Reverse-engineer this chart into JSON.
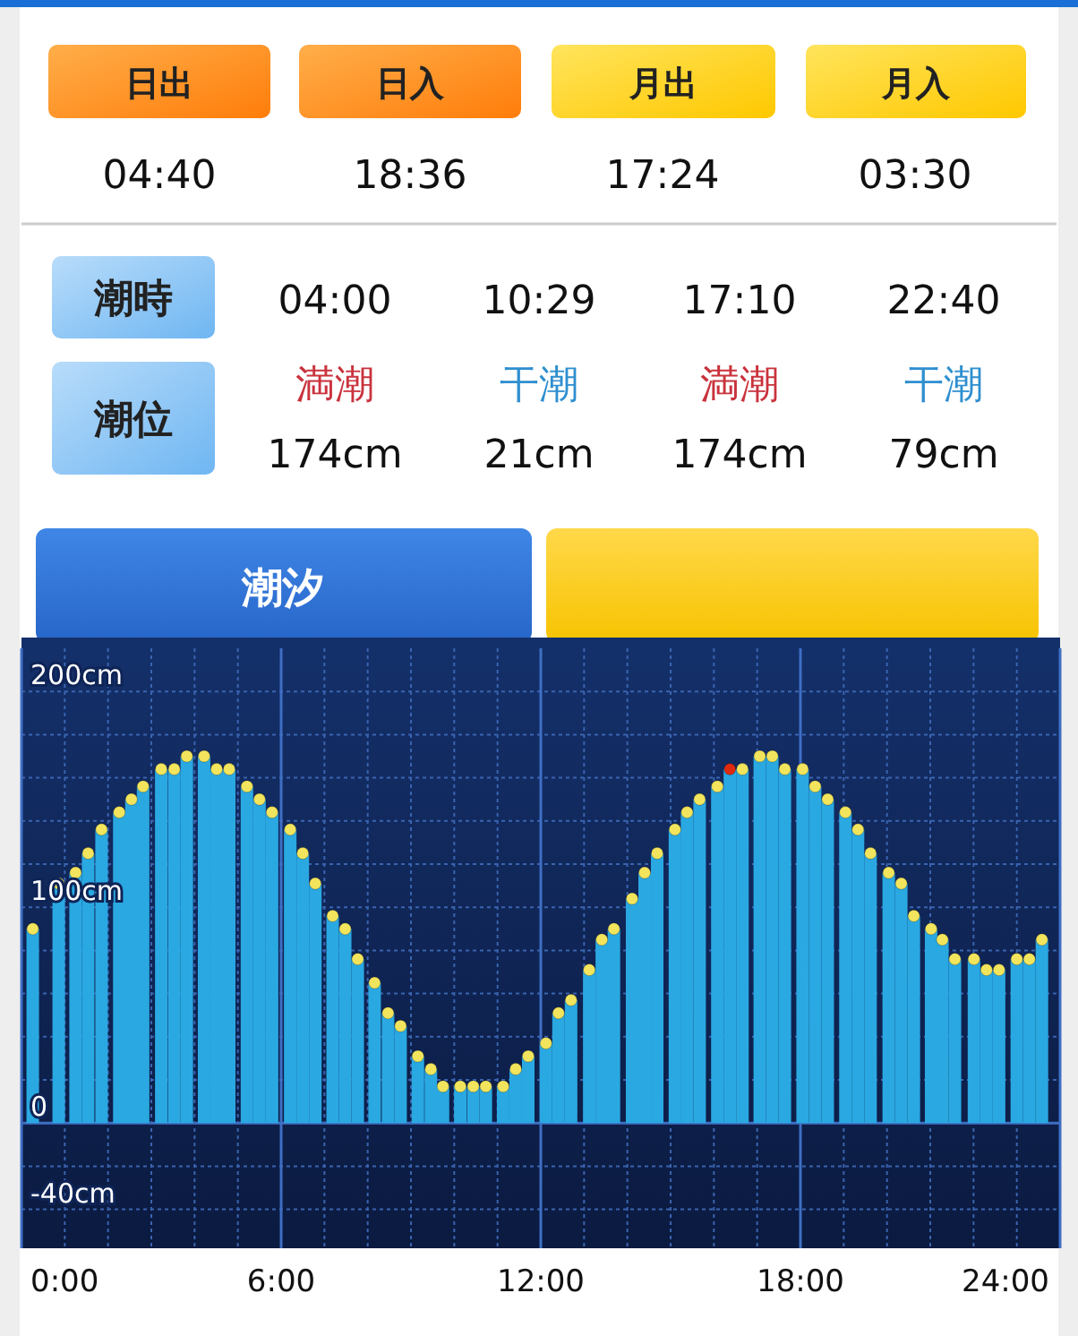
{
  "chart_data": [
    {
      "type": "other",
      "annotations": [
        "日出",
        "日入",
        "月出",
        "月入",
        "04:40",
        "18:36",
        "17:24",
        "03:30",
        "潮時",
        "潮位",
        "04:00",
        "10:29",
        "17:10",
        "22:40",
        "満潮",
        "干潮",
        "満潮",
        "干潮",
        "174cm",
        "21cm",
        "174cm",
        "79cm"
      ]
    },
    {
      "type": "area",
      "title": "潮汐",
      "series": [
        {
          "type": "bar",
          "color": "#2aa8e2",
          "x": [
            0.26,
            0.86,
            1.25,
            1.54,
            1.85,
            2.26,
            2.54,
            2.81,
            3.23,
            3.53,
            3.82,
            4.22,
            4.51,
            4.8,
            5.21,
            5.5,
            5.79,
            6.21,
            6.5,
            6.79,
            7.19,
            7.48,
            7.77,
            8.16,
            8.47,
            8.76,
            9.16,
            9.46,
            9.74,
            10.14,
            10.44,
            10.73,
            11.13,
            11.42,
            11.71,
            12.12,
            12.41,
            12.7,
            13.12,
            13.41,
            13.69,
            14.11,
            14.4,
            14.69,
            15.1,
            15.38,
            15.67,
            16.08,
            16.37,
            16.66,
            17.06,
            17.35,
            17.64,
            18.05,
            18.34,
            18.63,
            19.04,
            19.33,
            19.62,
            20.04,
            20.33,
            20.62,
            21.02,
            21.28,
            21.57,
            22.01,
            22.3,
            22.59,
            23.0,
            23.29,
            23.58
          ],
          "values": [
            90,
            111,
            116,
            125,
            136,
            144,
            150,
            156,
            164,
            164,
            170,
            170,
            164,
            164,
            156,
            150,
            144,
            136,
            125,
            111,
            96,
            90,
            76,
            65,
            51,
            45,
            31,
            25,
            17,
            17,
            17,
            17,
            17,
            25,
            31,
            37,
            51,
            57,
            71,
            85,
            90,
            104,
            116,
            125,
            136,
            144,
            150,
            156,
            164,
            164,
            170,
            170,
            164,
            164,
            156,
            150,
            144,
            136,
            125,
            116,
            111,
            96,
            90,
            85,
            76,
            76,
            71,
            71,
            76,
            76,
            85
          ]
        },
        {
          "type": "scatter",
          "color": "#f2e45c",
          "x": [
            0.26,
            0.86,
            1.25,
            1.54,
            1.85,
            2.26,
            2.54,
            2.81,
            3.23,
            3.53,
            3.82,
            4.22,
            4.51,
            4.8,
            5.21,
            5.5,
            5.79,
            6.21,
            6.5,
            6.79,
            7.19,
            7.48,
            7.77,
            8.16,
            8.47,
            8.76,
            9.16,
            9.46,
            9.74,
            10.14,
            10.44,
            10.73,
            11.13,
            11.42,
            11.71,
            12.12,
            12.41,
            12.7,
            13.12,
            13.41,
            13.69,
            14.11,
            14.4,
            14.69,
            15.1,
            15.38,
            15.67,
            16.08,
            16.66,
            17.06,
            17.35,
            17.64,
            18.05,
            18.34,
            18.63,
            19.04,
            19.33,
            19.62,
            20.04,
            20.33,
            20.62,
            21.02,
            21.28,
            21.57,
            22.01,
            22.3,
            22.59,
            23.0,
            23.29,
            23.58
          ],
          "values": [
            90,
            111,
            116,
            125,
            136,
            144,
            150,
            156,
            164,
            164,
            170,
            170,
            164,
            164,
            156,
            150,
            144,
            136,
            125,
            111,
            96,
            90,
            76,
            65,
            51,
            45,
            31,
            25,
            17,
            17,
            17,
            17,
            17,
            25,
            31,
            37,
            51,
            57,
            71,
            85,
            90,
            104,
            116,
            125,
            136,
            144,
            150,
            156,
            164,
            170,
            170,
            164,
            164,
            156,
            150,
            144,
            136,
            125,
            116,
            111,
            96,
            90,
            85,
            76,
            76,
            71,
            71,
            76,
            76,
            85
          ]
        },
        {
          "type": "scatter",
          "color": "#e02a10",
          "x": [
            16.37
          ],
          "values": [
            164
          ]
        }
      ],
      "xlim": [
        0,
        24
      ],
      "xticks": [
        {
          "value": 0,
          "label": "0:00"
        },
        {
          "value": 1,
          "label": null
        },
        {
          "value": 2,
          "label": null
        },
        {
          "value": 3,
          "label": null
        },
        {
          "value": 4,
          "label": null
        },
        {
          "value": 5,
          "label": null
        },
        {
          "value": 6,
          "label": "6:00"
        },
        {
          "value": 7,
          "label": null
        },
        {
          "value": 8,
          "label": null
        },
        {
          "value": 9,
          "label": null
        },
        {
          "value": 10,
          "label": null
        },
        {
          "value": 11,
          "label": null
        },
        {
          "value": 12,
          "label": "12:00"
        },
        {
          "value": 13,
          "label": null
        },
        {
          "value": 14,
          "label": null
        },
        {
          "value": 15,
          "label": null
        },
        {
          "value": 16,
          "label": null
        },
        {
          "value": 17,
          "label": null
        },
        {
          "value": 18,
          "label": "18:00"
        },
        {
          "value": 19,
          "label": null
        },
        {
          "value": 20,
          "label": null
        },
        {
          "value": 21,
          "label": null
        },
        {
          "value": 22,
          "label": null
        },
        {
          "value": 23,
          "label": null
        },
        {
          "value": 24,
          "label": "24:00"
        }
      ],
      "ylim": [
        -58,
        220
      ],
      "yticks": [
        {
          "value": -40,
          "label": "-40cm"
        },
        {
          "value": -20,
          "label": null
        },
        {
          "value": 0,
          "label": "0"
        },
        {
          "value": 20,
          "label": null
        },
        {
          "value": 40,
          "label": null
        },
        {
          "value": 60,
          "label": null
        },
        {
          "value": 80,
          "label": null
        },
        {
          "value": 100,
          "label": "100cm"
        },
        {
          "value": 120,
          "label": null
        },
        {
          "value": 140,
          "label": null
        },
        {
          "value": 160,
          "label": null
        },
        {
          "value": 180,
          "label": null
        },
        {
          "value": 200,
          "label": "200cm"
        }
      ],
      "grid": true
    }
  ]
}
